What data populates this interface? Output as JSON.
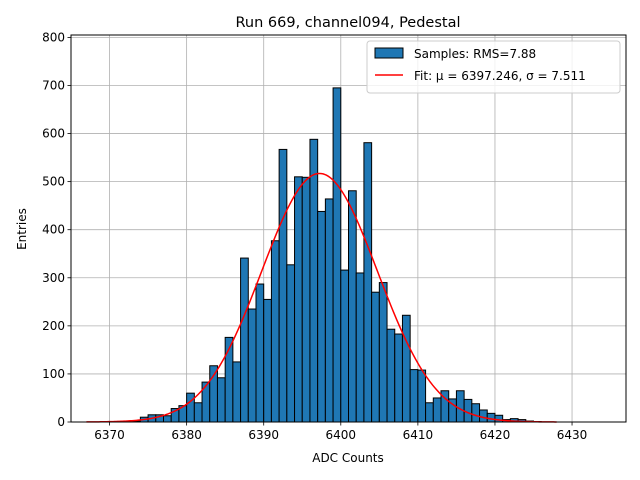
{
  "chart_data": {
    "type": "bar",
    "title": "Run 669, channel094, Pedestal",
    "xlabel": "ADC Counts",
    "ylabel": "Entries",
    "xlim": [
      6365,
      6437
    ],
    "ylim": [
      0,
      805
    ],
    "grid": true,
    "legend_position": "top-right",
    "x_ticks": [
      6370,
      6380,
      6390,
      6400,
      6410,
      6420,
      6430
    ],
    "y_ticks": [
      0,
      100,
      200,
      300,
      400,
      500,
      600,
      700,
      800
    ],
    "bin_width": 1,
    "histogram": {
      "label": "Samples: RMS=7.88",
      "color": "#1f77b4",
      "bin_starts": [
        6369,
        6370,
        6371,
        6372,
        6373,
        6374,
        6375,
        6376,
        6377,
        6378,
        6379,
        6380,
        6381,
        6382,
        6383,
        6384,
        6385,
        6386,
        6387,
        6388,
        6389,
        6390,
        6391,
        6392,
        6393,
        6394,
        6395,
        6396,
        6397,
        6398,
        6399,
        6400,
        6401,
        6402,
        6403,
        6404,
        6405,
        6406,
        6407,
        6408,
        6409,
        6410,
        6411,
        6412,
        6413,
        6414,
        6415,
        6416,
        6417,
        6418,
        6419,
        6420,
        6421,
        6422,
        6423,
        6424,
        6425
      ],
      "counts": [
        1,
        1,
        1,
        1,
        2,
        10,
        15,
        15,
        13,
        28,
        34,
        60,
        40,
        83,
        117,
        92,
        176,
        125,
        341,
        235,
        287,
        255,
        377,
        567,
        327,
        510,
        509,
        588,
        438,
        464,
        695,
        316,
        481,
        310,
        581,
        270,
        290,
        193,
        183,
        222,
        109,
        108,
        40,
        50,
        65,
        48,
        65,
        47,
        38,
        25,
        18,
        14,
        5,
        7,
        5,
        2,
        1
      ]
    },
    "fit": {
      "label": "Fit: μ = 6397.246, σ = 7.511",
      "mu": 6397.246,
      "sigma": 7.511,
      "amplitude": 517,
      "x_range": [
        6367,
        6428
      ],
      "color": "#ff0000"
    }
  }
}
